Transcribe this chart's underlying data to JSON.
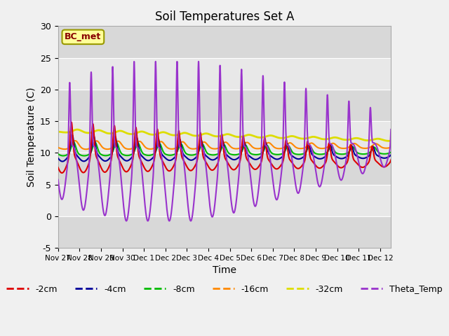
{
  "title": "Soil Temperatures Set A",
  "xlabel": "Time",
  "ylabel": "Soil Temperature (C)",
  "ylim": [
    -5,
    30
  ],
  "xlim_days": [
    0,
    15.5
  ],
  "annotation_text": "BC_met",
  "plot_bg_color": "#e8e8e8",
  "grid_color": "#ffffff",
  "lines": {
    "-2cm": {
      "color": "#dd0000",
      "lw": 1.5
    },
    "-4cm": {
      "color": "#000099",
      "lw": 1.5
    },
    "-8cm": {
      "color": "#00bb00",
      "lw": 1.5
    },
    "-16cm": {
      "color": "#ff8800",
      "lw": 1.5
    },
    "-32cm": {
      "color": "#dddd00",
      "lw": 2.0
    },
    "Theta_Temp": {
      "color": "#9933cc",
      "lw": 1.5
    }
  },
  "xtick_labels": [
    "Nov 27",
    "Nov 28",
    "Nov 29",
    "Nov 30",
    "Dec 1",
    "Dec 2",
    "Dec 3",
    "Dec 4",
    "Dec 5",
    "Dec 6",
    "Dec 7",
    "Dec 8",
    "Dec 9",
    "Dec 10",
    "Dec 11",
    "Dec 12"
  ],
  "xtick_positions": [
    0,
    1,
    2,
    3,
    4,
    5,
    6,
    7,
    8,
    9,
    10,
    11,
    12,
    13,
    14,
    15
  ],
  "ytick_positions": [
    -5,
    0,
    5,
    10,
    15,
    20,
    25,
    30
  ],
  "legend_entries": [
    "-2cm",
    "-4cm",
    "-8cm",
    "-16cm",
    "-32cm",
    "Theta_Temp"
  ],
  "legend_colors": [
    "#dd0000",
    "#000099",
    "#00bb00",
    "#ff8800",
    "#dddd00",
    "#9933cc"
  ]
}
